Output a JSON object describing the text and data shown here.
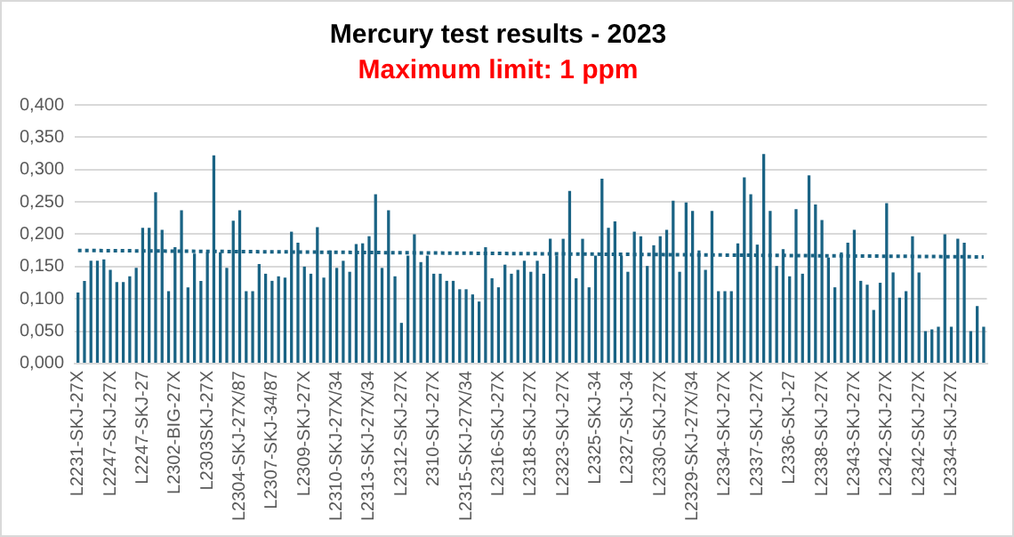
{
  "chart_data": {
    "type": "bar",
    "title": "Mercury test results - 2023",
    "subtitle": "Maximum limit: 1 ppm",
    "categories": [
      "L2231-SKJ-27X",
      null,
      null,
      null,
      null,
      "L2247-SKJ-27X",
      null,
      null,
      null,
      null,
      "L2247-SKJ-27",
      null,
      null,
      null,
      null,
      "L2302-BIG-27X",
      null,
      null,
      null,
      null,
      "L2303SKJ-27X",
      null,
      null,
      null,
      null,
      "L2304-SKJ-27X/87",
      null,
      null,
      null,
      null,
      "L2307-SKJ-34/87",
      null,
      null,
      null,
      null,
      "L2309-SKJ-27X",
      null,
      null,
      null,
      null,
      "L2310-SKJ-27X/34",
      null,
      null,
      null,
      null,
      "L2313-SKJ-27X/34",
      null,
      null,
      null,
      null,
      "L2312-SKJ-27X",
      null,
      null,
      null,
      null,
      "2310-SKJ-27X",
      null,
      null,
      null,
      null,
      "L2315-SKJ-27X/34",
      null,
      null,
      null,
      null,
      "L2316-SKJ-27X",
      null,
      null,
      null,
      null,
      "L2318-SKJ-27X",
      null,
      null,
      null,
      null,
      "L2323-SKJ-27X",
      null,
      null,
      null,
      null,
      "L2325-SKJ-34",
      null,
      null,
      null,
      null,
      "L2327-SKJ-34",
      null,
      null,
      null,
      null,
      "L2330-SKJ-27X",
      null,
      null,
      null,
      null,
      "L2329-SKJ-27X/34",
      null,
      null,
      null,
      null,
      "L2334-SKJ-27X",
      null,
      null,
      null,
      null,
      "L2337-SKJ-27X",
      null,
      null,
      null,
      null,
      "L2336-SKJ-27",
      null,
      null,
      null,
      null,
      "L2338-SKJ-27X",
      null,
      null,
      null,
      null,
      "L2343-SKJ-27X",
      null,
      null,
      null,
      null,
      "L2342-SKJ-27X",
      null,
      null,
      null,
      null,
      "L2342-SKJ-27X",
      null,
      null,
      null,
      null,
      "L2334-SKJ-27X",
      null,
      null,
      null,
      null,
      null
    ],
    "series": [
      {
        "color": "#1a6384",
        "values": [
          0.11,
          0.128,
          0.159,
          0.159,
          0.161,
          0.145,
          0.126,
          0.126,
          0.135,
          0.148,
          0.21,
          0.21,
          0.265,
          0.207,
          0.112,
          0.18,
          0.237,
          0.118,
          0.17,
          0.128,
          0.172,
          0.322,
          0.172,
          0.148,
          0.221,
          0.237,
          0.112,
          0.112,
          0.154,
          0.139,
          0.128,
          0.135,
          0.133,
          0.204,
          0.187,
          0.15,
          0.139,
          0.211,
          0.133,
          0.175,
          0.148,
          0.159,
          0.142,
          0.185,
          0.186,
          0.197,
          0.262,
          0.148,
          0.237,
          0.135,
          0.063,
          0.167,
          0.2,
          0.157,
          0.167,
          0.139,
          0.139,
          0.128,
          0.128,
          0.115,
          0.115,
          0.107,
          0.096,
          0.18,
          0.132,
          0.118,
          0.153,
          0.139,
          0.145,
          0.159,
          0.142,
          0.159,
          0.139,
          0.193,
          0.167,
          0.193,
          0.267,
          0.132,
          0.193,
          0.118,
          0.167,
          0.286,
          0.21,
          0.22,
          0.167,
          0.142,
          0.204,
          0.197,
          0.151,
          0.183,
          0.197,
          0.207,
          0.252,
          0.142,
          0.249,
          0.236,
          0.175,
          0.145,
          0.236,
          0.112,
          0.112,
          0.112,
          0.186,
          0.288,
          0.262,
          0.184,
          0.324,
          0.236,
          0.151,
          0.177,
          0.135,
          0.239,
          0.139,
          0.291,
          0.246,
          0.222,
          0.164,
          0.118,
          0.172,
          0.187,
          0.207,
          0.128,
          0.122,
          0.083,
          0.125,
          0.248,
          0.141,
          0.102,
          0.112,
          0.197,
          0.141,
          0.05,
          0.053,
          0.057,
          0.2,
          0.057,
          0.193,
          0.187,
          0.05,
          0.089,
          0.057
        ]
      },
      {
        "type": "line",
        "color": "#1a6384",
        "line_style": "dotted",
        "marker": "none",
        "values": [
          0.175,
          null,
          null,
          null,
          null,
          null,
          null,
          null,
          null,
          null,
          null,
          null,
          null,
          null,
          null,
          null,
          null,
          null,
          null,
          null,
          null,
          null,
          null,
          null,
          null,
          null,
          null,
          null,
          null,
          null,
          null,
          null,
          null,
          null,
          null,
          null,
          null,
          null,
          null,
          null,
          null,
          null,
          null,
          null,
          null,
          null,
          null,
          null,
          null,
          null,
          null,
          null,
          null,
          null,
          null,
          null,
          null,
          null,
          null,
          null,
          null,
          null,
          null,
          null,
          null,
          null,
          null,
          null,
          null,
          null,
          null,
          null,
          null,
          null,
          null,
          null,
          null,
          null,
          null,
          null,
          null,
          null,
          null,
          null,
          null,
          null,
          null,
          null,
          null,
          null,
          null,
          null,
          null,
          null,
          null,
          null,
          null,
          null,
          null,
          null,
          null,
          null,
          null,
          null,
          null,
          null,
          null,
          null,
          null,
          null,
          null,
          null,
          null,
          null,
          null,
          null,
          null,
          null,
          null,
          null,
          null,
          null,
          null,
          null,
          null,
          null,
          null,
          null,
          null,
          null,
          null,
          null,
          null,
          null,
          null,
          null,
          null,
          null,
          null,
          null,
          0.165
        ]
      }
    ],
    "ylim": [
      0,
      0.4
    ],
    "yticks": [
      {
        "value": 0,
        "label": "0,000"
      },
      {
        "value": 0.05,
        "label": "0,050"
      },
      {
        "value": 0.1,
        "label": "0,100"
      },
      {
        "value": 0.15,
        "label": "0,150"
      },
      {
        "value": 0.2,
        "label": "0,200"
      },
      {
        "value": 0.25,
        "label": "0,250"
      },
      {
        "value": 0.3,
        "label": "0,300"
      },
      {
        "value": 0.35,
        "label": "0,350"
      },
      {
        "value": 0.4,
        "label": "0,400"
      }
    ],
    "grid": "y",
    "legend": false
  }
}
